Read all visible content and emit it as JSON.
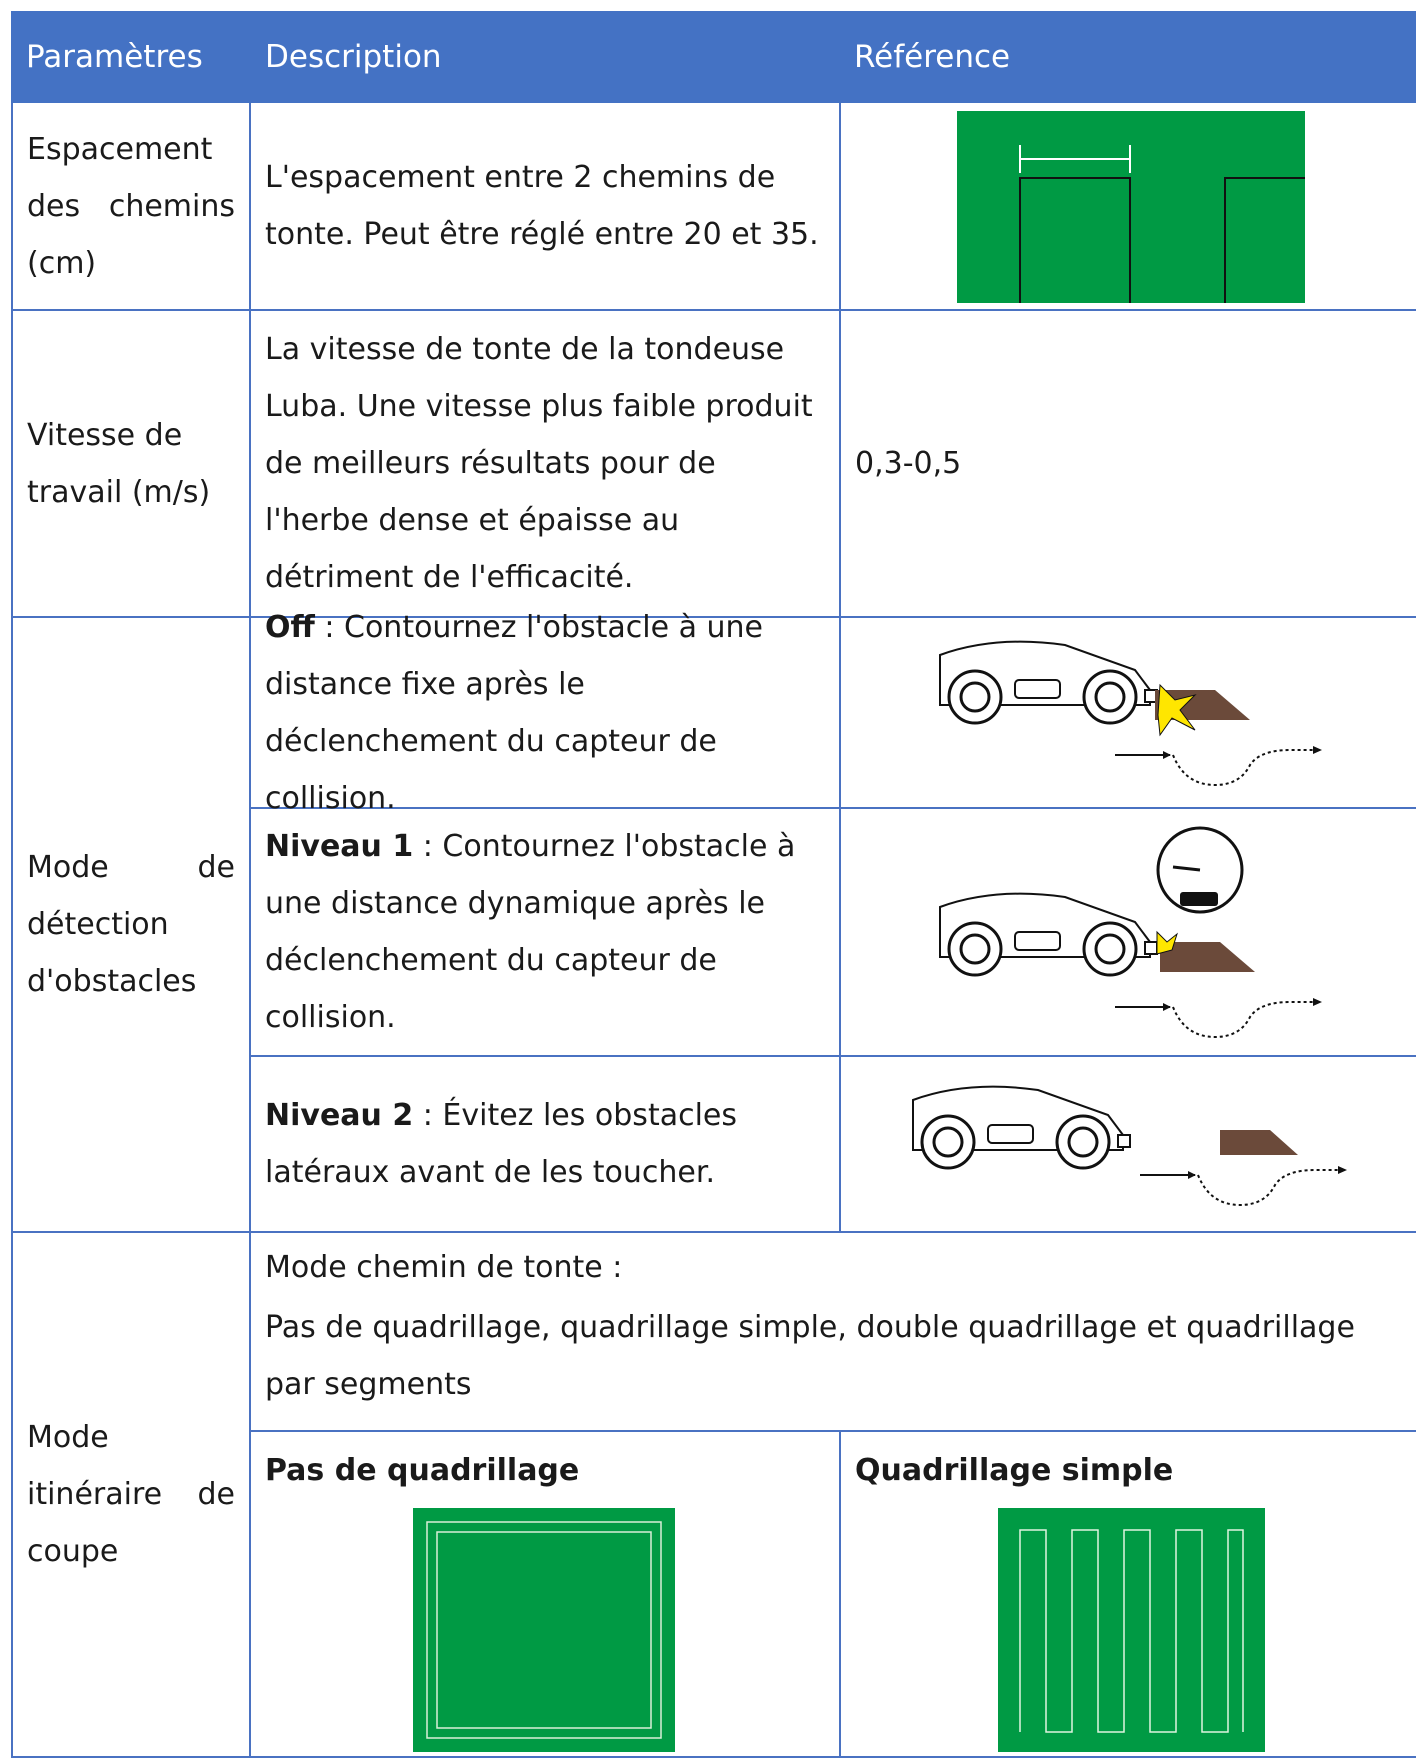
{
  "header": {
    "columns": [
      "Paramètres",
      "Description",
      "Référence"
    ]
  },
  "rows": [
    {
      "parameter": "Espacement des chemins (cm)",
      "description": "L'espacement entre 2 chemins de tonte. Peut être réglé entre 20 et 35."
    },
    {
      "parameter": "Vitesse de travail (m/s)",
      "description": "La vitesse de tonte de la tondeuse Luba. Une vitesse plus faible produit de meilleurs résultats pour de l'herbe dense et épaisse au détriment de l'efficacité.",
      "reference": "0,3-0,5"
    },
    {
      "parameter": "Mode de détection d'obstacles",
      "options": [
        {
          "label": "Off",
          "text": ": Contournez l'obstacle à une distance fixe après le déclenchement du capteur de collision."
        },
        {
          "label": "Niveau 1",
          "text": ": Contournez l'obstacle à une distance dynamique après le déclenchement du capteur de collision."
        },
        {
          "label": "Niveau 2",
          "text": ": Évitez les obstacles latéraux avant de les toucher."
        }
      ]
    },
    {
      "parameter": "Mode itinéraire de coupe",
      "intro": "Mode chemin de tonte :",
      "modes": "Pas de quadrillage, quadrillage simple, double quadrillage et quadrillage par segments",
      "patterns": [
        "Pas de quadrillage",
        "Quadrillage simple"
      ]
    }
  ]
}
